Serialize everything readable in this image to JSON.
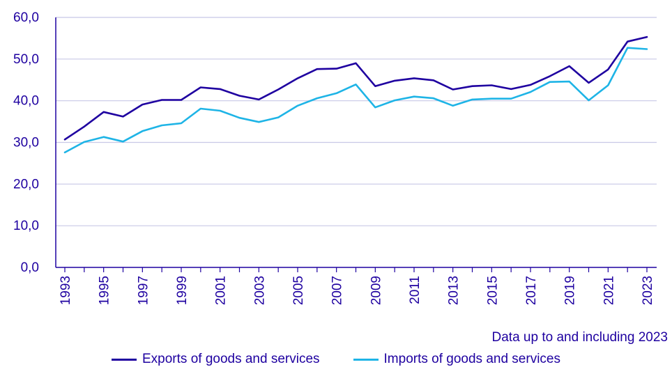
{
  "chart_data": {
    "type": "line",
    "title": "",
    "xlabel": "",
    "ylabel": "",
    "ylim": [
      0,
      60
    ],
    "yticks": [
      "0,0",
      "10,0",
      "20,0",
      "30,0",
      "40,0",
      "50,0",
      "60,0"
    ],
    "ytick_values": [
      0,
      10,
      20,
      30,
      40,
      50,
      60
    ],
    "x": [
      1993,
      1994,
      1995,
      1996,
      1997,
      1998,
      1999,
      2000,
      2001,
      2002,
      2003,
      2004,
      2005,
      2006,
      2007,
      2008,
      2009,
      2010,
      2011,
      2012,
      2013,
      2014,
      2015,
      2016,
      2017,
      2018,
      2019,
      2020,
      2021,
      2022,
      2023
    ],
    "xtick_labels": [
      "1993",
      "1995",
      "1997",
      "1999",
      "2001",
      "2003",
      "2005",
      "2007",
      "2009",
      "2011",
      "2013",
      "2015",
      "2017",
      "2019",
      "2021",
      "2023"
    ],
    "grid": true,
    "legend_position": "bottom-center",
    "series": [
      {
        "name": "Exports of goods and services",
        "color": "#1e00a0",
        "values": [
          30.7,
          33.8,
          37.3,
          36.2,
          39.1,
          40.2,
          40.2,
          43.2,
          42.8,
          41.2,
          40.3,
          42.7,
          45.4,
          47.6,
          47.7,
          49.0,
          43.5,
          44.8,
          45.4,
          44.9,
          42.7,
          43.5,
          43.7,
          42.8,
          43.8,
          45.9,
          48.3,
          44.3,
          47.5,
          54.2,
          55.3
        ]
      },
      {
        "name": "Imports of goods and services",
        "color": "#1eb4e6",
        "values": [
          27.6,
          30.1,
          31.3,
          30.2,
          32.7,
          34.1,
          34.6,
          38.1,
          37.6,
          35.9,
          34.9,
          36.0,
          38.8,
          40.6,
          41.8,
          43.9,
          38.4,
          40.1,
          41.0,
          40.6,
          38.8,
          40.3,
          40.5,
          40.5,
          42.1,
          44.5,
          44.6,
          40.1,
          43.7,
          52.7,
          52.4
        ]
      }
    ],
    "note": "Data up to and including 2023"
  }
}
